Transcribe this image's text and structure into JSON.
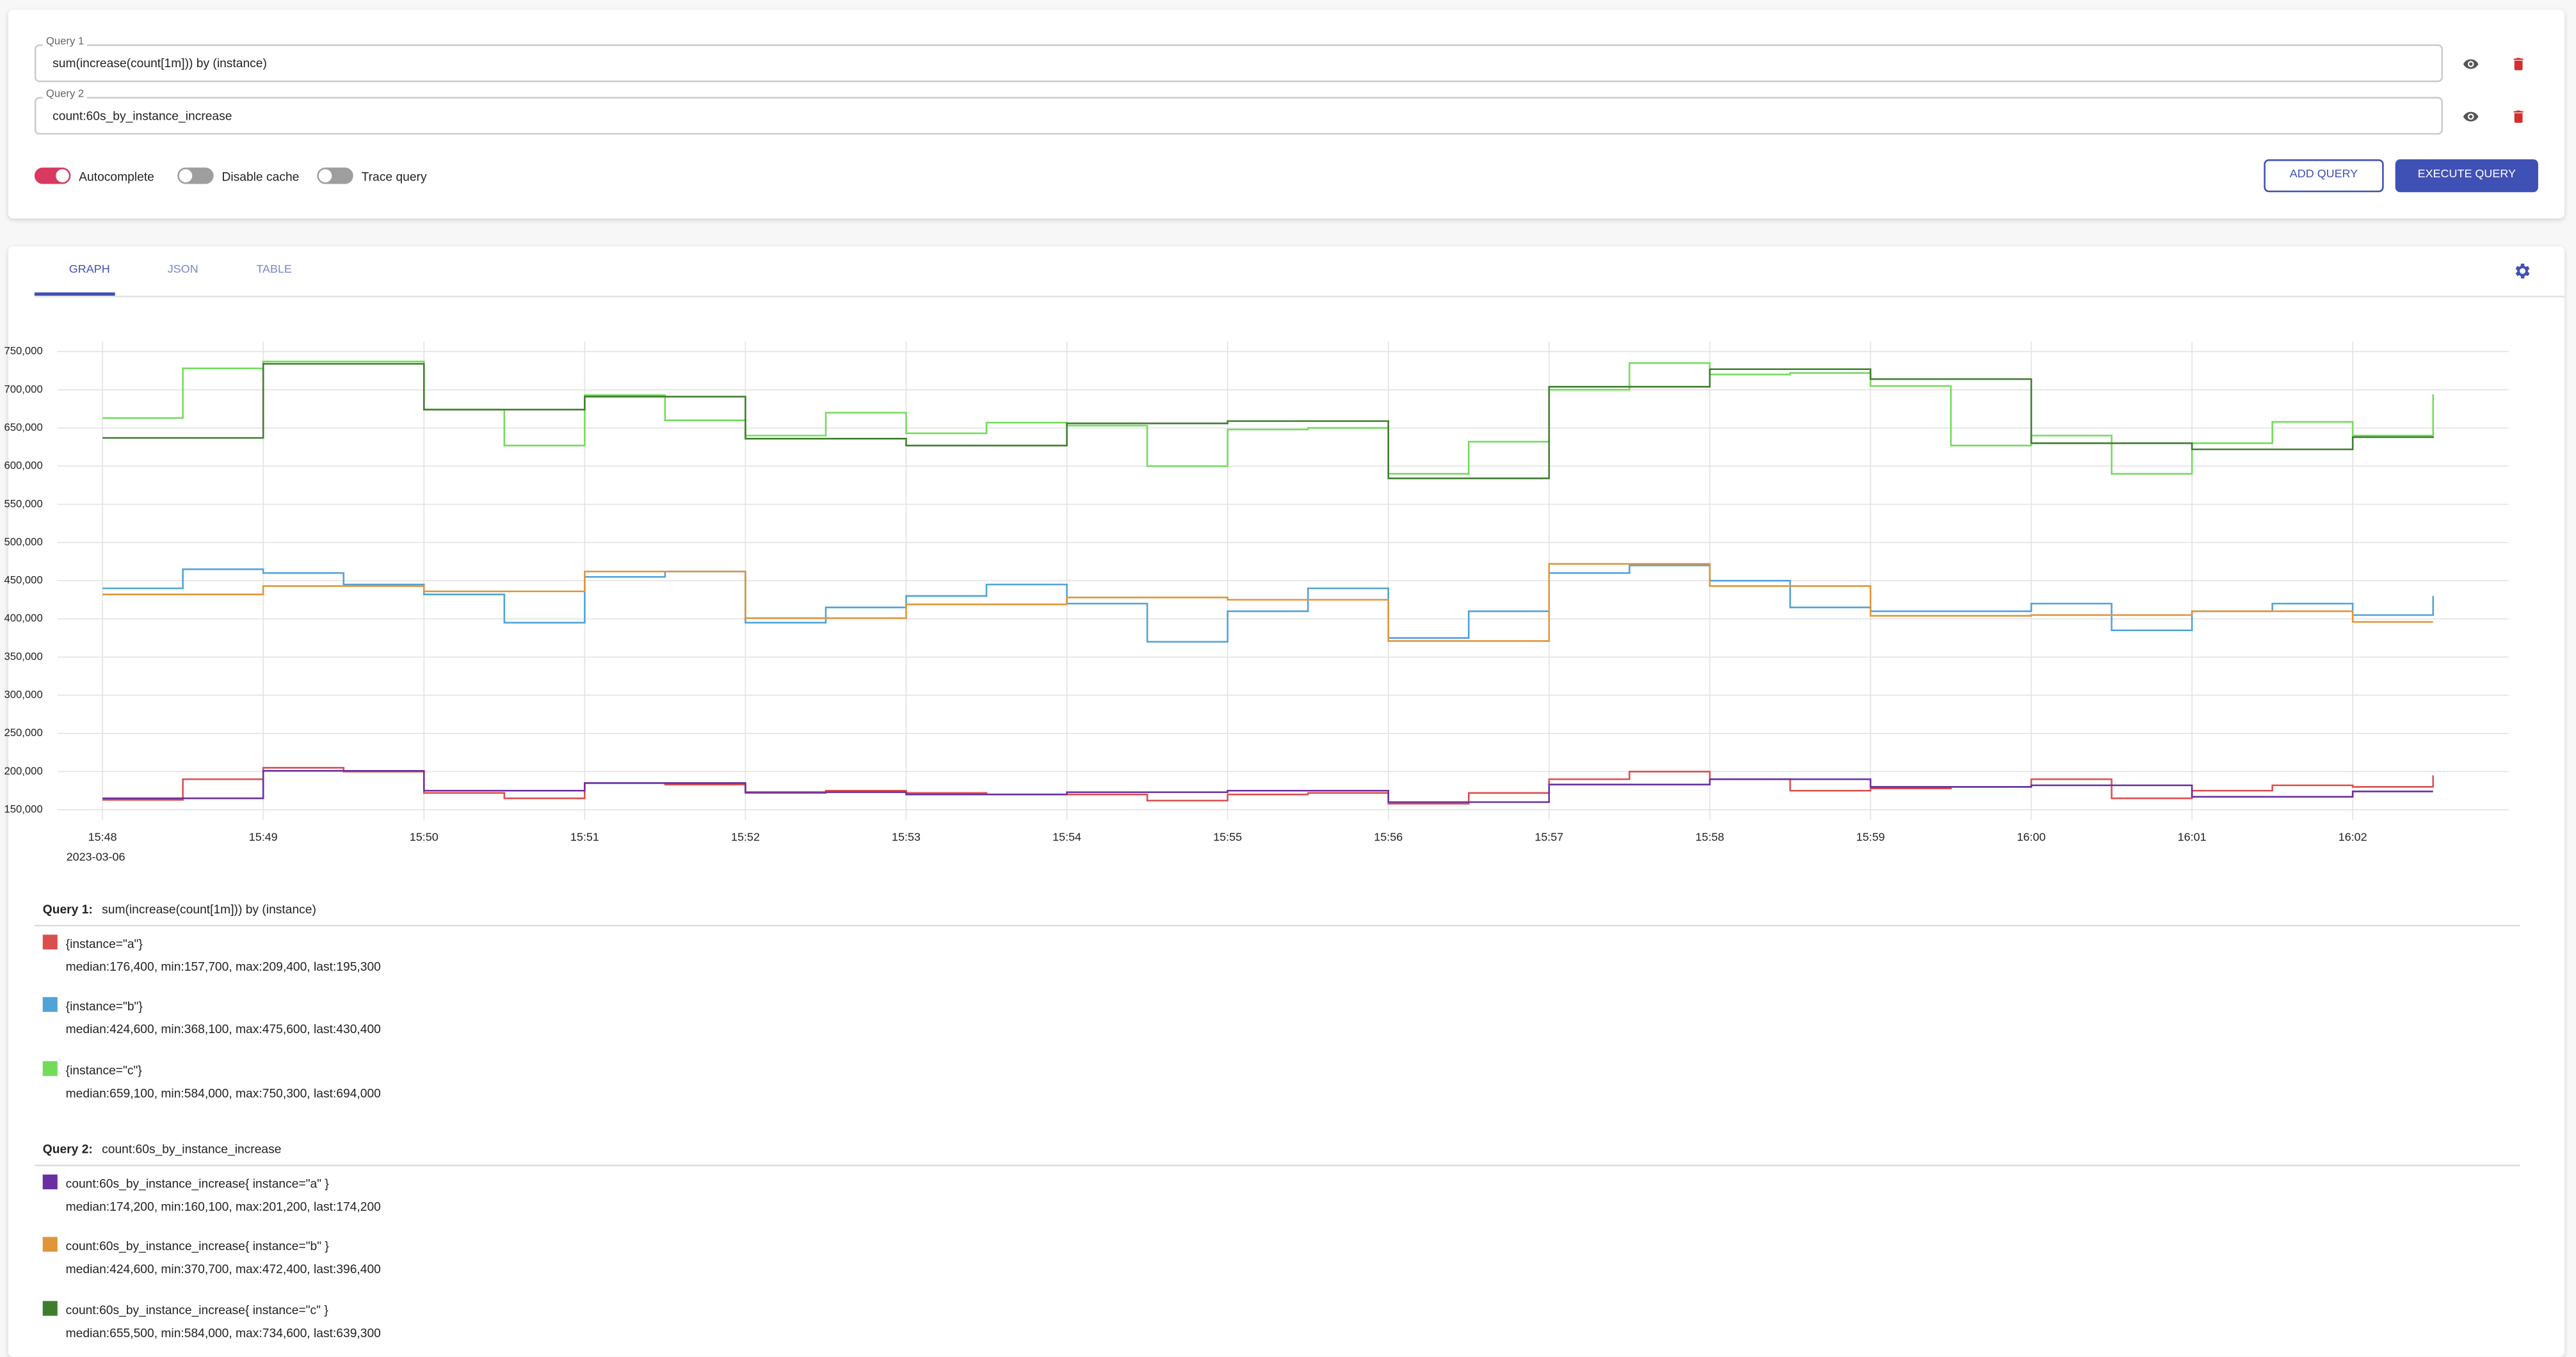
{
  "query_panel": {
    "queries": [
      {
        "label": "Query 1",
        "expr": "sum(increase(count[1m])) by (instance)"
      },
      {
        "label": "Query 2",
        "expr": "count:60s_by_instance_increase"
      }
    ],
    "toggles": [
      {
        "label": "Autocomplete",
        "on": true
      },
      {
        "label": "Disable cache",
        "on": false
      },
      {
        "label": "Trace query",
        "on": false
      }
    ],
    "buttons": {
      "add": "ADD QUERY",
      "execute": "EXECUTE QUERY"
    }
  },
  "tabs": [
    "GRAPH",
    "JSON",
    "TABLE"
  ],
  "chart_data": {
    "type": "line",
    "step": true,
    "grid": true,
    "x": [
      948,
      948.5,
      949,
      949.5,
      950,
      950.5,
      951,
      951.5,
      952,
      952.5,
      953,
      953.5,
      954,
      954.5,
      955,
      955.5,
      956,
      956.5,
      957,
      957.5,
      958,
      958.5,
      959,
      959.5,
      960,
      960.5,
      961,
      961.5,
      962,
      962.5
    ],
    "xlim": [
      947.72,
      962.97
    ],
    "xticks": [
      {
        "value": 948,
        "label": "15:48"
      },
      {
        "value": 949,
        "label": "15:49"
      },
      {
        "value": 950,
        "label": "15:50"
      },
      {
        "value": 951,
        "label": "15:51"
      },
      {
        "value": 952,
        "label": "15:52"
      },
      {
        "value": 953,
        "label": "15:53"
      },
      {
        "value": 954,
        "label": "15:54"
      },
      {
        "value": 955,
        "label": "15:55"
      },
      {
        "value": 956,
        "label": "15:56"
      },
      {
        "value": 957,
        "label": "15:57"
      },
      {
        "value": 958,
        "label": "15:58"
      },
      {
        "value": 959,
        "label": "15:59"
      },
      {
        "value": 960,
        "label": "16:00"
      },
      {
        "value": 961,
        "label": "16:01"
      },
      {
        "value": 962,
        "label": "16:02"
      }
    ],
    "xdate": "2023-03-06",
    "ylim": [
      137000,
      763000
    ],
    "yticks": [
      {
        "value": 150000,
        "label": "150,000"
      },
      {
        "value": 200000,
        "label": "200,000"
      },
      {
        "value": 250000,
        "label": "250,000"
      },
      {
        "value": 300000,
        "label": "300,000"
      },
      {
        "value": 350000,
        "label": "350,000"
      },
      {
        "value": 400000,
        "label": "400,000"
      },
      {
        "value": 450000,
        "label": "450,000"
      },
      {
        "value": 500000,
        "label": "500,000"
      },
      {
        "value": 550000,
        "label": "550,000"
      },
      {
        "value": 600000,
        "label": "600,000"
      },
      {
        "value": 650000,
        "label": "650,000"
      },
      {
        "value": 700000,
        "label": "700,000"
      },
      {
        "value": 750000,
        "label": "750,000"
      }
    ],
    "series": [
      {
        "name": "{instance=\"a\"}",
        "color": "#dc4e4e",
        "stats": "median:176,400, min:157,700, max:209,400, last:195,300",
        "values": [
          163000,
          190000,
          205000,
          200000,
          172000,
          165000,
          185000,
          183000,
          172000,
          175000,
          172000,
          170000,
          170000,
          162000,
          170000,
          172000,
          158000,
          172000,
          190000,
          200000,
          190000,
          175000,
          178000,
          180000,
          190000,
          165000,
          175000,
          182000,
          180000,
          195000
        ]
      },
      {
        "name": "{instance=\"b\"}",
        "color": "#4fa3d8",
        "stats": "median:424,600, min:368,100, max:475,600, last:430,400",
        "values": [
          440000,
          465000,
          460000,
          445000,
          432000,
          395000,
          455000,
          462000,
          395000,
          415000,
          430000,
          445000,
          420000,
          370000,
          410000,
          440000,
          375000,
          410000,
          460000,
          470000,
          450000,
          415000,
          410000,
          410000,
          420000,
          385000,
          410000,
          420000,
          405000,
          430000
        ]
      },
      {
        "name": "{instance=\"c\"}",
        "color": "#72dc5a",
        "stats": "median:659,100, min:584,000, max:750,300, last:694,000",
        "values": [
          663000,
          728000,
          737000,
          737000,
          674000,
          627000,
          693000,
          660000,
          640000,
          670000,
          643000,
          657000,
          653000,
          600000,
          648000,
          650000,
          590000,
          632000,
          700000,
          735000,
          720000,
          722000,
          705000,
          627000,
          640000,
          590000,
          630000,
          658000,
          640000,
          694000
        ]
      },
      {
        "name": "count:60s_by_instance_increase{ instance=\"a\" }",
        "color": "#6a2fa0",
        "stats": "median:174,200, min:160,100, max:201,200, last:174,200",
        "values": [
          165000,
          165000,
          201000,
          201000,
          175000,
          175000,
          185000,
          185000,
          173000,
          173000,
          170000,
          170000,
          173000,
          173000,
          175000,
          175000,
          160000,
          160000,
          183000,
          183000,
          190000,
          190000,
          180000,
          180000,
          182000,
          182000,
          167000,
          167000,
          174000,
          174000
        ]
      },
      {
        "name": "count:60s_by_instance_increase{ instance=\"b\" }",
        "color": "#e0953a",
        "stats": "median:424,600, min:370,700, max:472,400, last:396,400",
        "values": [
          432000,
          432000,
          443000,
          443000,
          436000,
          436000,
          462000,
          462000,
          401000,
          401000,
          419000,
          419000,
          428000,
          428000,
          425000,
          425000,
          371000,
          371000,
          472000,
          472000,
          443000,
          443000,
          404000,
          404000,
          405000,
          405000,
          410000,
          410000,
          396000,
          396000
        ]
      },
      {
        "name": "count:60s_by_instance_increase{ instance=\"c\" }",
        "color": "#3f7d2e",
        "stats": "median:655,500, min:584,000, max:734,600, last:639,300",
        "values": [
          637000,
          637000,
          734000,
          734000,
          674000,
          674000,
          691000,
          691000,
          636000,
          636000,
          627000,
          627000,
          656000,
          656000,
          659000,
          659000,
          584000,
          584000,
          704000,
          704000,
          727000,
          727000,
          714000,
          714000,
          630000,
          630000,
          622000,
          622000,
          638000,
          639000
        ]
      }
    ]
  },
  "legend": {
    "groups": [
      {
        "label": "Query 1:",
        "expr": "sum(increase(count[1m])) by (instance)"
      },
      {
        "label": "Query 2:",
        "expr": "count:60s_by_instance_increase"
      }
    ]
  }
}
